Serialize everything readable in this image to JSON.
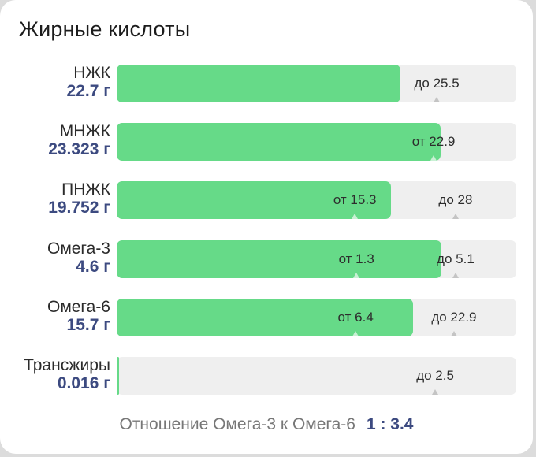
{
  "title": "Жирные кислоты",
  "colors": {
    "fill": "#66da88",
    "track": "#efefef",
    "amount_text": "#3c4a80"
  },
  "rows": [
    {
      "name": "НЖК",
      "amount": "22.7 г",
      "fill_pct": 71.1,
      "markers": [
        {
          "label": "до 25.5",
          "pos_pct": 80.1
        }
      ]
    },
    {
      "name": "МНЖК",
      "amount": "23.323 г",
      "fill_pct": 81.1,
      "markers": [
        {
          "label": "от 22.9",
          "pos_pct": 79.3
        }
      ]
    },
    {
      "name": "ПНЖК",
      "amount": "19.752 г",
      "fill_pct": 68.6,
      "markers": [
        {
          "label": "от 15.3",
          "pos_pct": 59.6
        },
        {
          "label": "до 28",
          "pos_pct": 84.8
        }
      ]
    },
    {
      "name": "Омега-3",
      "amount": "4.6 г",
      "fill_pct": 81.3,
      "markers": [
        {
          "label": "от 1.3",
          "pos_pct": 60.0
        },
        {
          "label": "до 5.1",
          "pos_pct": 84.8
        }
      ]
    },
    {
      "name": "Омега-6",
      "amount": "15.7 г",
      "fill_pct": 74.2,
      "markers": [
        {
          "label": "от 6.4",
          "pos_pct": 59.8
        },
        {
          "label": "до 22.9",
          "pos_pct": 84.4
        }
      ]
    },
    {
      "name": "Трансжиры",
      "amount": "0.016 г",
      "fill_pct": 0.5,
      "markers": [
        {
          "label": "до 2.5",
          "pos_pct": 79.7
        }
      ]
    }
  ],
  "ratio": {
    "label": "Отношение Омега-3 к Омега-6",
    "value": "1 : 3.4"
  }
}
